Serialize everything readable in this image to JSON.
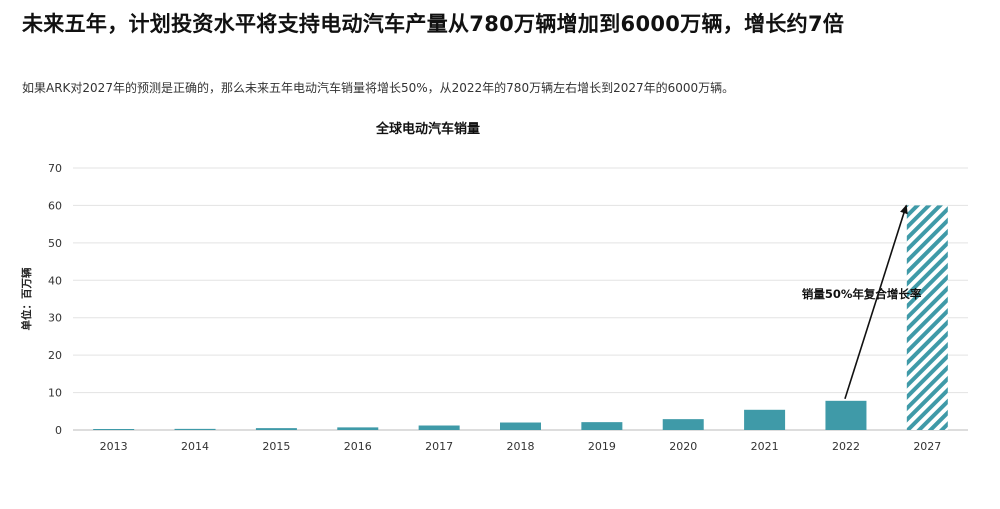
{
  "headline": "未来五年，计划投资水平将支持电动汽车产量从780万辆增加到6000万辆，增长约7倍",
  "subtitle": "如果ARK对2027年的预测是正确的，那么未来五年电动汽车销量将增长50%，从2022年的780万辆左右增长到2027年的6000万辆。",
  "colors": {
    "bar": "#3f9aa8",
    "forecast_hatch": "#3f9aa8",
    "grid": "#e3e3e3",
    "axis": "#bbbbbb",
    "arrow": "#111111"
  },
  "chart_data": {
    "type": "bar",
    "title": "全球电动汽车销量",
    "xlabel": "",
    "ylabel": "单位：百万辆",
    "categories": [
      "2013",
      "2014",
      "2015",
      "2016",
      "2017",
      "2018",
      "2019",
      "2020",
      "2021",
      "2022",
      "2027"
    ],
    "values": [
      0.1,
      0.3,
      0.5,
      0.7,
      1.2,
      2.0,
      2.1,
      2.9,
      5.4,
      7.8,
      60
    ],
    "forecast_categories": [
      "2027"
    ],
    "ylim": [
      0,
      70
    ],
    "yticks": [
      0,
      10,
      20,
      30,
      40,
      50,
      60,
      70
    ],
    "grid": true,
    "annotation": {
      "text": "销量50%年复合增长率",
      "from_category": "2022",
      "to_category": "2027"
    }
  }
}
